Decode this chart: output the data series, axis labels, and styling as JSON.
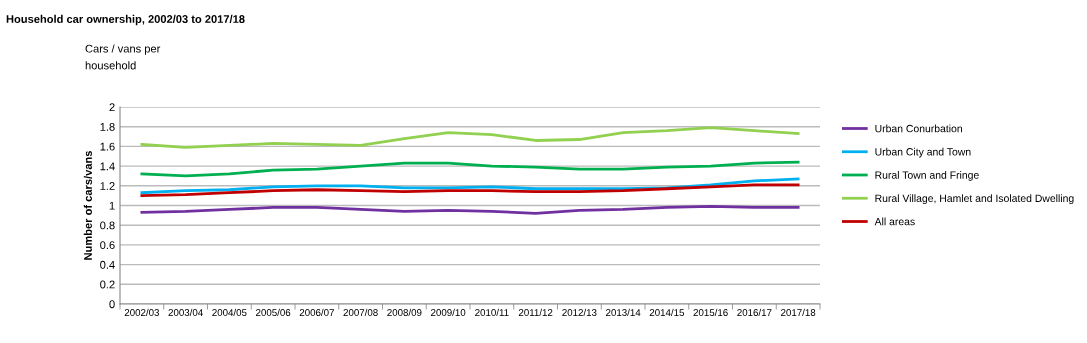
{
  "chart_data": {
    "type": "line",
    "title": "Household car ownership, 2002/03 to 2017/18",
    "ylabel": "Number of cars/vans",
    "annotations": [
      "Cars / vans per\nhousehold"
    ],
    "categories": [
      "2002/03",
      "2003/04",
      "2004/05",
      "2005/06",
      "2006/07",
      "2007/08",
      "2008/09",
      "2009/10",
      "2010/11",
      "2011/12",
      "2012/13",
      "2013/14",
      "2014/15",
      "2015/16",
      "2016/17",
      "2017/18"
    ],
    "series": [
      {
        "name": "Urban Conurbation",
        "color": "#7030a0",
        "values": [
          0.93,
          0.94,
          0.96,
          0.98,
          0.98,
          0.96,
          0.94,
          0.95,
          0.94,
          0.92,
          0.95,
          0.96,
          0.98,
          0.99,
          0.98,
          0.98
        ]
      },
      {
        "name": "Urban City and Town",
        "color": "#00b0f0",
        "values": [
          1.13,
          1.15,
          1.16,
          1.19,
          1.2,
          1.2,
          1.18,
          1.18,
          1.19,
          1.17,
          1.17,
          1.17,
          1.18,
          1.21,
          1.25,
          1.27
        ]
      },
      {
        "name": "Rural Town and Fringe",
        "color": "#00b050",
        "values": [
          1.32,
          1.3,
          1.32,
          1.36,
          1.37,
          1.4,
          1.43,
          1.43,
          1.4,
          1.39,
          1.37,
          1.37,
          1.39,
          1.4,
          1.43,
          1.44
        ]
      },
      {
        "name": "Rural Village, Hamlet and Isolated Dwelling",
        "color": "#92d050",
        "values": [
          1.62,
          1.59,
          1.61,
          1.63,
          1.62,
          1.61,
          1.68,
          1.74,
          1.72,
          1.66,
          1.67,
          1.74,
          1.76,
          1.79,
          1.76,
          1.73
        ]
      },
      {
        "name": "All areas",
        "color": "#c00000",
        "values": [
          1.1,
          1.11,
          1.13,
          1.15,
          1.16,
          1.15,
          1.14,
          1.15,
          1.15,
          1.14,
          1.14,
          1.15,
          1.17,
          1.19,
          1.21,
          1.21
        ]
      }
    ],
    "ylim": [
      0,
      2
    ],
    "yticks": [
      0,
      0.2,
      0.4,
      0.6,
      0.8,
      1,
      1.2,
      1.4,
      1.6,
      1.8,
      2
    ],
    "grid": "y",
    "legend": "right",
    "marker": "none",
    "line_style": "solid"
  }
}
